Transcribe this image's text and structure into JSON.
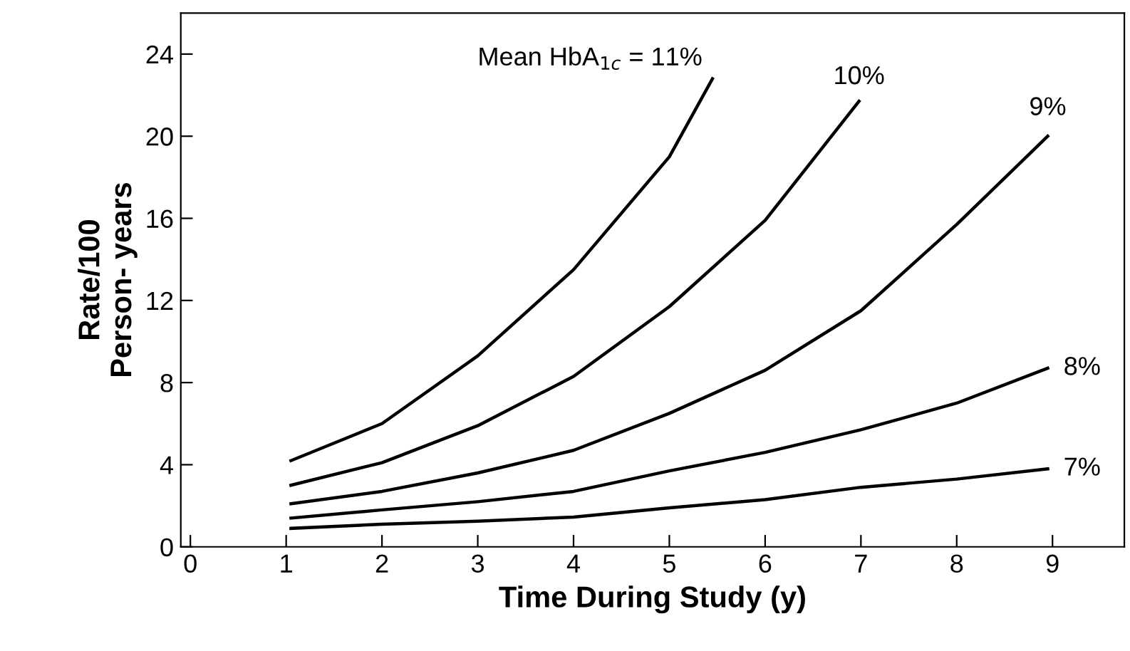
{
  "chart_data": {
    "type": "line",
    "xlabel": "Time During Study (y)",
    "ylabel": "Rate/100\nPerson- years",
    "xlim": [
      -0.1,
      9.75
    ],
    "ylim": [
      0,
      26
    ],
    "xticks": [
      0,
      1,
      2,
      3,
      4,
      5,
      6,
      7,
      8,
      9
    ],
    "yticks": [
      0,
      4,
      8,
      12,
      16,
      20,
      24
    ],
    "grid": false,
    "legend": false,
    "marker": "none",
    "line_style": "solid",
    "series": [
      {
        "color": "#000000",
        "x": [
          1.05,
          2,
          3,
          4,
          5,
          5.45
        ],
        "values": [
          4.2,
          6.0,
          9.3,
          13.5,
          19.0,
          22.8
        ]
      },
      {
        "color": "#000000",
        "x": [
          1.05,
          2,
          3,
          4,
          5,
          6,
          6.98
        ],
        "values": [
          3.0,
          4.1,
          5.9,
          8.3,
          11.7,
          15.9,
          21.7
        ]
      },
      {
        "color": "#000000",
        "x": [
          1.05,
          2,
          3,
          4,
          5,
          6,
          7,
          8,
          8.95
        ],
        "values": [
          2.1,
          2.7,
          3.6,
          4.7,
          6.5,
          8.6,
          11.5,
          15.7,
          20.0
        ]
      },
      {
        "color": "#000000",
        "x": [
          1.05,
          2,
          3,
          4,
          5,
          6,
          7,
          8,
          8.95
        ],
        "values": [
          1.4,
          1.8,
          2.2,
          2.7,
          3.7,
          4.6,
          5.7,
          7.0,
          8.7
        ]
      },
      {
        "color": "#000000",
        "x": [
          1.05,
          2,
          3,
          4,
          5,
          6,
          7,
          8,
          8.95
        ],
        "values": [
          0.9,
          1.1,
          1.25,
          1.45,
          1.9,
          2.3,
          2.9,
          3.3,
          3.8
        ]
      }
    ],
    "annotations": [
      {
        "text": "Mean HbA$_{1c}$ = 11%",
        "x": 5.45,
        "y": 22.8
      },
      {
        "text": "10%",
        "x": 6.98,
        "y": 21.7
      },
      {
        "text": "9%",
        "x": 8.95,
        "y": 20.0
      },
      {
        "text": "8%",
        "x": 8.95,
        "y": 8.7
      },
      {
        "text": "7%",
        "x": 8.95,
        "y": 3.8
      }
    ]
  }
}
